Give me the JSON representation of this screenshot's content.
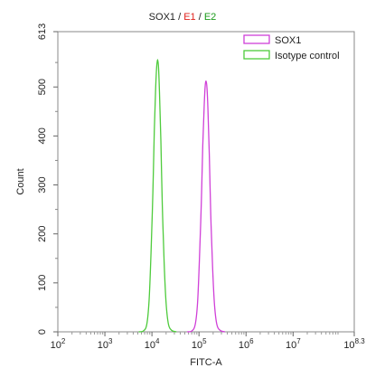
{
  "chart_data": {
    "type": "line",
    "title_parts": [
      {
        "text": "SOX1",
        "color": "#222222"
      },
      {
        "text": " / ",
        "color": "#222222"
      },
      {
        "text": "E1",
        "color": "#e0201b"
      },
      {
        "text": " / ",
        "color": "#222222"
      },
      {
        "text": "E2",
        "color": "#1a9a1a"
      }
    ],
    "xlabel": "FITC-A",
    "ylabel": "Count",
    "x_scale": "log10",
    "xlim_exp": [
      2,
      8.3
    ],
    "x_ticks": [
      {
        "base": "10",
        "exp": "2",
        "value": 2
      },
      {
        "base": "10",
        "exp": "3",
        "value": 3
      },
      {
        "base": "10",
        "exp": "4",
        "value": 4
      },
      {
        "base": "10",
        "exp": "5",
        "value": 5
      },
      {
        "base": "10",
        "exp": "6",
        "value": 6
      },
      {
        "base": "10",
        "exp": "7",
        "value": 7
      },
      {
        "base": "10",
        "exp": "8.3",
        "value": 8.3
      }
    ],
    "ylim": [
      0,
      613
    ],
    "y_ticks": [
      {
        "label": "0",
        "value": 0
      },
      {
        "label": "100",
        "value": 100
      },
      {
        "label": "200",
        "value": 200
      },
      {
        "label": "300",
        "value": 300
      },
      {
        "label": "400",
        "value": 400
      },
      {
        "label": "500",
        "value": 500
      },
      {
        "label": "613",
        "value": 613
      }
    ],
    "legend_position": "top-right",
    "series": [
      {
        "name": "SOX1",
        "color": "#d040d8",
        "peak_log10": 5.15,
        "peak_count": 512,
        "x_log10": [
          4.75,
          4.85,
          4.92,
          4.97,
          5.01,
          5.05,
          5.08,
          5.11,
          5.13,
          5.15,
          5.17,
          5.19,
          5.22,
          5.25,
          5.29,
          5.33,
          5.38,
          5.45,
          5.55
        ],
        "y": [
          0,
          2,
          15,
          60,
          150,
          265,
          380,
          460,
          500,
          512,
          498,
          455,
          360,
          240,
          130,
          55,
          15,
          3,
          0
        ]
      },
      {
        "name": "Isotype control",
        "color": "#4ecb3c",
        "peak_log10": 4.12,
        "peak_count": 556,
        "x_log10": [
          3.72,
          3.82,
          3.89,
          3.94,
          3.98,
          4.02,
          4.05,
          4.08,
          4.1,
          4.12,
          4.14,
          4.16,
          4.19,
          4.22,
          4.26,
          4.3,
          4.35,
          4.42,
          4.52
        ],
        "y": [
          0,
          2,
          15,
          65,
          160,
          285,
          410,
          500,
          540,
          556,
          540,
          490,
          390,
          260,
          140,
          60,
          16,
          3,
          0
        ]
      }
    ]
  }
}
